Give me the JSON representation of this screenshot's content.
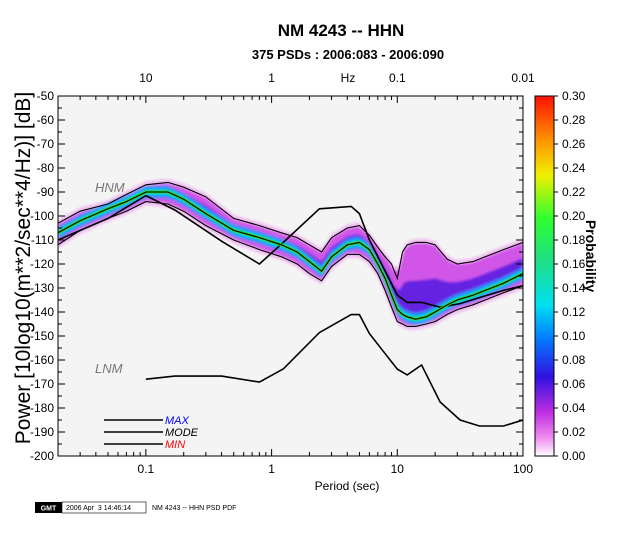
{
  "chart_data": {
    "type": "heatmap",
    "title": "NM 4243 -- HHN",
    "subtitle": "375 PSDs : 2006:083 - 2006:090",
    "xlabel": "Period (sec)",
    "ylabel": "Power [10log10(m**2/sec**4/Hz)] [dB]",
    "top_axis_label": "Hz",
    "x_scale": "log",
    "xlim": [
      0.02,
      100
    ],
    "ylim": [
      -200,
      -50
    ],
    "x_ticks": [
      0.1,
      1,
      10,
      100
    ],
    "x_tick_labels": [
      "0.1",
      "1",
      "10",
      "100"
    ],
    "top_ticks": [
      0.1,
      1,
      10,
      100
    ],
    "top_tick_labels": [
      "10",
      "1",
      "0.1",
      "0.01"
    ],
    "y_ticks": [
      -50,
      -60,
      -70,
      -80,
      -90,
      -100,
      -110,
      -120,
      -130,
      -140,
      -150,
      -160,
      -170,
      -180,
      -190,
      -200
    ],
    "y_tick_labels": [
      "-50",
      "-60",
      "-70",
      "-80",
      "-90",
      "-100",
      "-110",
      "-120",
      "-130",
      "-140",
      "-150",
      "-160",
      "-170",
      "-180",
      "-190",
      "-200"
    ],
    "colorbar": {
      "label": "Probability",
      "range": [
        0,
        0.3
      ],
      "ticks": [
        "0.00",
        "0.02",
        "0.04",
        "0.06",
        "0.08",
        "0.10",
        "0.12",
        "0.14",
        "0.16",
        "0.18",
        "0.20",
        "0.22",
        "0.24",
        "0.26",
        "0.28",
        "0.30"
      ]
    },
    "models": [
      {
        "name": "HNM",
        "x": [
          0.02,
          0.05,
          0.1,
          0.17,
          0.4,
          0.8,
          1.24,
          2.4,
          4.3,
          5,
          6,
          10,
          12,
          15.6,
          21.9,
          31.6,
          45,
          70,
          100
        ],
        "y": [
          -110,
          -101,
          -91.5,
          -97.5,
          -110.5,
          -120,
          -111,
          -97,
          -96,
          -99,
          -110,
          -133,
          -136,
          -136,
          -138,
          -136.5,
          -134,
          -131,
          -129
        ]
      },
      {
        "name": "LNM",
        "x": [
          0.1,
          0.17,
          0.4,
          0.8,
          1.24,
          2.4,
          4.3,
          5,
          6,
          10,
          12,
          15.6,
          21.9,
          31.6,
          45,
          70,
          100
        ],
        "y": [
          -168,
          -166.7,
          -166.7,
          -169.2,
          -163.7,
          -148.6,
          -141.1,
          -141.1,
          -149,
          -163.8,
          -166.2,
          -162.1,
          -177.5,
          -185,
          -187.5,
          -187.5,
          -185
        ]
      }
    ],
    "series": [
      {
        "name": "MAX",
        "color": "#000000",
        "x": [
          0.02,
          0.03,
          0.05,
          0.07,
          0.1,
          0.15,
          0.2,
          0.3,
          0.5,
          0.8,
          1.2,
          1.6,
          2,
          2.5,
          3,
          4,
          5,
          6,
          7,
          8,
          9,
          10,
          11,
          12,
          14,
          17,
          20,
          25,
          30,
          40,
          50,
          70,
          100
        ],
        "y": [
          -103,
          -98,
          -95,
          -91,
          -87,
          -86,
          -88,
          -92,
          -101,
          -104,
          -107,
          -109,
          -112,
          -115,
          -109,
          -105,
          -104,
          -108,
          -113,
          -117,
          -120,
          -126,
          -115,
          -112,
          -111,
          -111,
          -112,
          -118,
          -120,
          -119,
          -117,
          -114,
          -111
        ]
      },
      {
        "name": "MODE",
        "color": "#000000",
        "x": [
          0.02,
          0.03,
          0.05,
          0.07,
          0.1,
          0.15,
          0.2,
          0.3,
          0.5,
          0.8,
          1.2,
          1.6,
          2,
          2.5,
          3,
          4,
          5,
          6,
          7,
          8,
          9,
          10,
          11,
          12,
          14,
          17,
          20,
          25,
          30,
          40,
          50,
          70,
          100
        ],
        "y": [
          -107,
          -102,
          -97,
          -94,
          -90,
          -90,
          -93,
          -99,
          -106,
          -109,
          -112,
          -115,
          -119,
          -123,
          -117,
          -112,
          -111,
          -114,
          -120,
          -126,
          -133,
          -139,
          -141,
          -142,
          -143,
          -142,
          -140,
          -137,
          -135,
          -133,
          -131,
          -128,
          -124
        ]
      },
      {
        "name": "MIN",
        "color": "#000000",
        "x": [
          0.02,
          0.03,
          0.05,
          0.07,
          0.1,
          0.15,
          0.2,
          0.3,
          0.5,
          0.8,
          1.2,
          1.6,
          2,
          2.5,
          3,
          4,
          5,
          6,
          7,
          8,
          9,
          10,
          11,
          12,
          14,
          17,
          20,
          25,
          30,
          40,
          50,
          70,
          100
        ],
        "y": [
          -112,
          -106,
          -101,
          -98,
          -94,
          -95,
          -98,
          -104,
          -110,
          -114,
          -117,
          -120,
          -124,
          -127,
          -121,
          -116,
          -116,
          -119,
          -124,
          -131,
          -138,
          -144,
          -145,
          -146,
          -146,
          -145,
          -144,
          -141,
          -139,
          -137,
          -135,
          -132,
          -129
        ]
      }
    ],
    "annotations": [
      {
        "text": "HNM"
      },
      {
        "text": "LNM"
      }
    ],
    "grid": false,
    "legend": {
      "placement": "bottom-left",
      "entries": [
        {
          "label": "MAX",
          "color": "#0000ff"
        },
        {
          "label": "MODE",
          "color": "#000000"
        },
        {
          "label": "MIN",
          "color": "#ff0000"
        }
      ]
    }
  },
  "footer": {
    "logo": "GMT",
    "timestamp": "2006 Apr  3 14:46:14",
    "caption": "NM 4243 -- HHN PSD PDF"
  }
}
